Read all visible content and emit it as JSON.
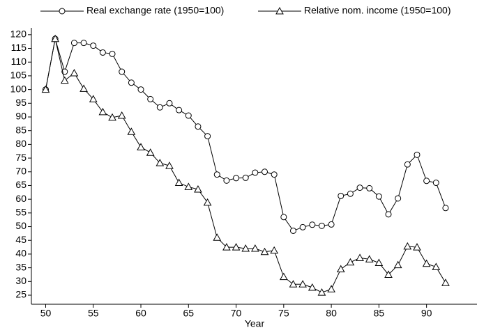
{
  "chart_data": {
    "type": "line",
    "xlabel": "Year",
    "x": [
      50,
      51,
      52,
      53,
      54,
      55,
      56,
      57,
      58,
      59,
      60,
      61,
      62,
      63,
      64,
      65,
      66,
      67,
      68,
      69,
      70,
      71,
      72,
      73,
      74,
      75,
      76,
      77,
      78,
      79,
      80,
      81,
      82,
      83,
      84,
      85,
      86,
      87,
      88,
      89,
      90,
      91,
      92
    ],
    "series": [
      {
        "name": "Real exchange rate (1950=100)",
        "color": "#000000",
        "marker": "circle",
        "values": [
          100,
          118.5,
          106.5,
          117,
          117,
          116,
          113.5,
          113,
          106.5,
          102.5,
          100,
          96.5,
          93.5,
          95,
          92.5,
          90.5,
          86.5,
          83,
          69,
          66.8,
          67.7,
          67.8,
          69.7,
          70,
          69,
          53.5,
          48.5,
          49.8,
          50.7,
          50.3,
          50.8,
          61.2,
          62,
          64.2,
          64,
          61,
          54.5,
          60.3,
          72.7,
          76.2,
          66.7,
          66,
          56.8
        ]
      },
      {
        "name": "Relative nom. income (1950=100)",
        "color": "#000000",
        "marker": "triangle",
        "values": [
          100,
          118.5,
          103.3,
          106,
          100.3,
          96.5,
          91.8,
          89.8,
          90.5,
          84.6,
          79,
          77,
          73.2,
          72.2,
          66,
          64.5,
          63.6,
          58.8,
          46,
          42.5,
          42.5,
          42,
          42,
          40.8,
          41.3,
          31.7,
          29,
          29,
          27.8,
          26,
          27.2,
          34.5,
          37,
          38.6,
          38.1,
          36.8,
          32.5,
          36,
          42.8,
          42.5,
          36.5,
          35.3,
          29.5
        ]
      }
    ],
    "xlim": [
      48.5,
      95.3
    ],
    "xticks": [
      50,
      55,
      60,
      65,
      70,
      75,
      80,
      85,
      90
    ],
    "ylim": [
      21.7,
      122.5
    ],
    "yticks": [
      25,
      30,
      35,
      40,
      45,
      50,
      55,
      60,
      65,
      70,
      75,
      80,
      85,
      90,
      95,
      100,
      105,
      110,
      115,
      120
    ]
  }
}
